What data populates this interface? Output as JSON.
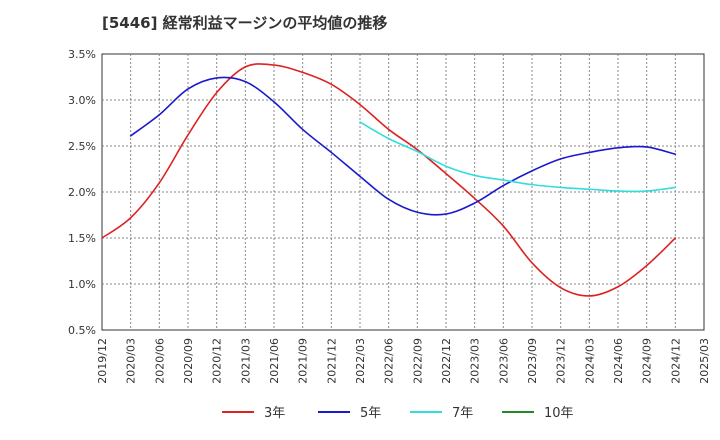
{
  "chart_data": {
    "type": "line",
    "title": "[5446]  経常利益マージンの平均値の推移",
    "xlabel": "",
    "ylabel": "",
    "ylim": [
      0.5,
      3.5
    ],
    "y_ticks": [
      0.5,
      1.0,
      1.5,
      2.0,
      2.5,
      3.0,
      3.5
    ],
    "y_tick_labels": [
      "0.5%",
      "1.0%",
      "1.5%",
      "2.0%",
      "2.5%",
      "3.0%",
      "3.5%"
    ],
    "x_tick_labels": [
      "2019/12",
      "2020/03",
      "2020/06",
      "2020/09",
      "2020/12",
      "2021/03",
      "2021/06",
      "2021/09",
      "2021/12",
      "2022/03",
      "2022/06",
      "2022/09",
      "2022/12",
      "2023/03",
      "2023/06",
      "2023/09",
      "2023/12",
      "2024/03",
      "2024/06",
      "2024/09",
      "2024/12",
      "2025/03"
    ],
    "grid": true,
    "legend_position": "bottom",
    "series": [
      {
        "name": "3年",
        "color": "#dd2222",
        "points": [
          [
            "2019/12",
            1.5
          ],
          [
            "2020/03",
            1.72
          ],
          [
            "2020/06",
            2.1
          ],
          [
            "2020/09",
            2.62
          ],
          [
            "2020/12",
            3.08
          ],
          [
            "2021/03",
            3.36
          ],
          [
            "2021/06",
            3.38
          ],
          [
            "2021/09",
            3.3
          ],
          [
            "2021/12",
            3.17
          ],
          [
            "2022/03",
            2.95
          ],
          [
            "2022/06",
            2.68
          ],
          [
            "2022/09",
            2.46
          ],
          [
            "2022/12",
            2.2
          ],
          [
            "2023/03",
            1.93
          ],
          [
            "2023/06",
            1.63
          ],
          [
            "2023/09",
            1.23
          ],
          [
            "2023/12",
            0.96
          ],
          [
            "2024/03",
            0.87
          ],
          [
            "2024/06",
            0.97
          ],
          [
            "2024/09",
            1.2
          ],
          [
            "2024/12",
            1.5
          ]
        ]
      },
      {
        "name": "5年",
        "color": "#1a1acc",
        "points": [
          [
            "2020/03",
            2.61
          ],
          [
            "2020/06",
            2.84
          ],
          [
            "2020/09",
            3.12
          ],
          [
            "2020/12",
            3.24
          ],
          [
            "2021/03",
            3.2
          ],
          [
            "2021/06",
            2.98
          ],
          [
            "2021/09",
            2.68
          ],
          [
            "2021/12",
            2.43
          ],
          [
            "2022/03",
            2.17
          ],
          [
            "2022/06",
            1.92
          ],
          [
            "2022/09",
            1.78
          ],
          [
            "2022/12",
            1.76
          ],
          [
            "2023/03",
            1.88
          ],
          [
            "2023/06",
            2.07
          ],
          [
            "2023/09",
            2.23
          ],
          [
            "2023/12",
            2.36
          ],
          [
            "2024/03",
            2.43
          ],
          [
            "2024/06",
            2.48
          ],
          [
            "2024/09",
            2.49
          ],
          [
            "2024/12",
            2.41
          ]
        ]
      },
      {
        "name": "7年",
        "color": "#33dddd",
        "points": [
          [
            "2022/03",
            2.76
          ],
          [
            "2022/06",
            2.58
          ],
          [
            "2022/09",
            2.44
          ],
          [
            "2022/12",
            2.28
          ],
          [
            "2023/03",
            2.18
          ],
          [
            "2023/06",
            2.13
          ],
          [
            "2023/09",
            2.08
          ],
          [
            "2023/12",
            2.05
          ],
          [
            "2024/03",
            2.03
          ],
          [
            "2024/06",
            2.01
          ],
          [
            "2024/09",
            2.01
          ],
          [
            "2024/12",
            2.05
          ]
        ]
      },
      {
        "name": "10年",
        "color": "#228822",
        "points": []
      }
    ]
  }
}
